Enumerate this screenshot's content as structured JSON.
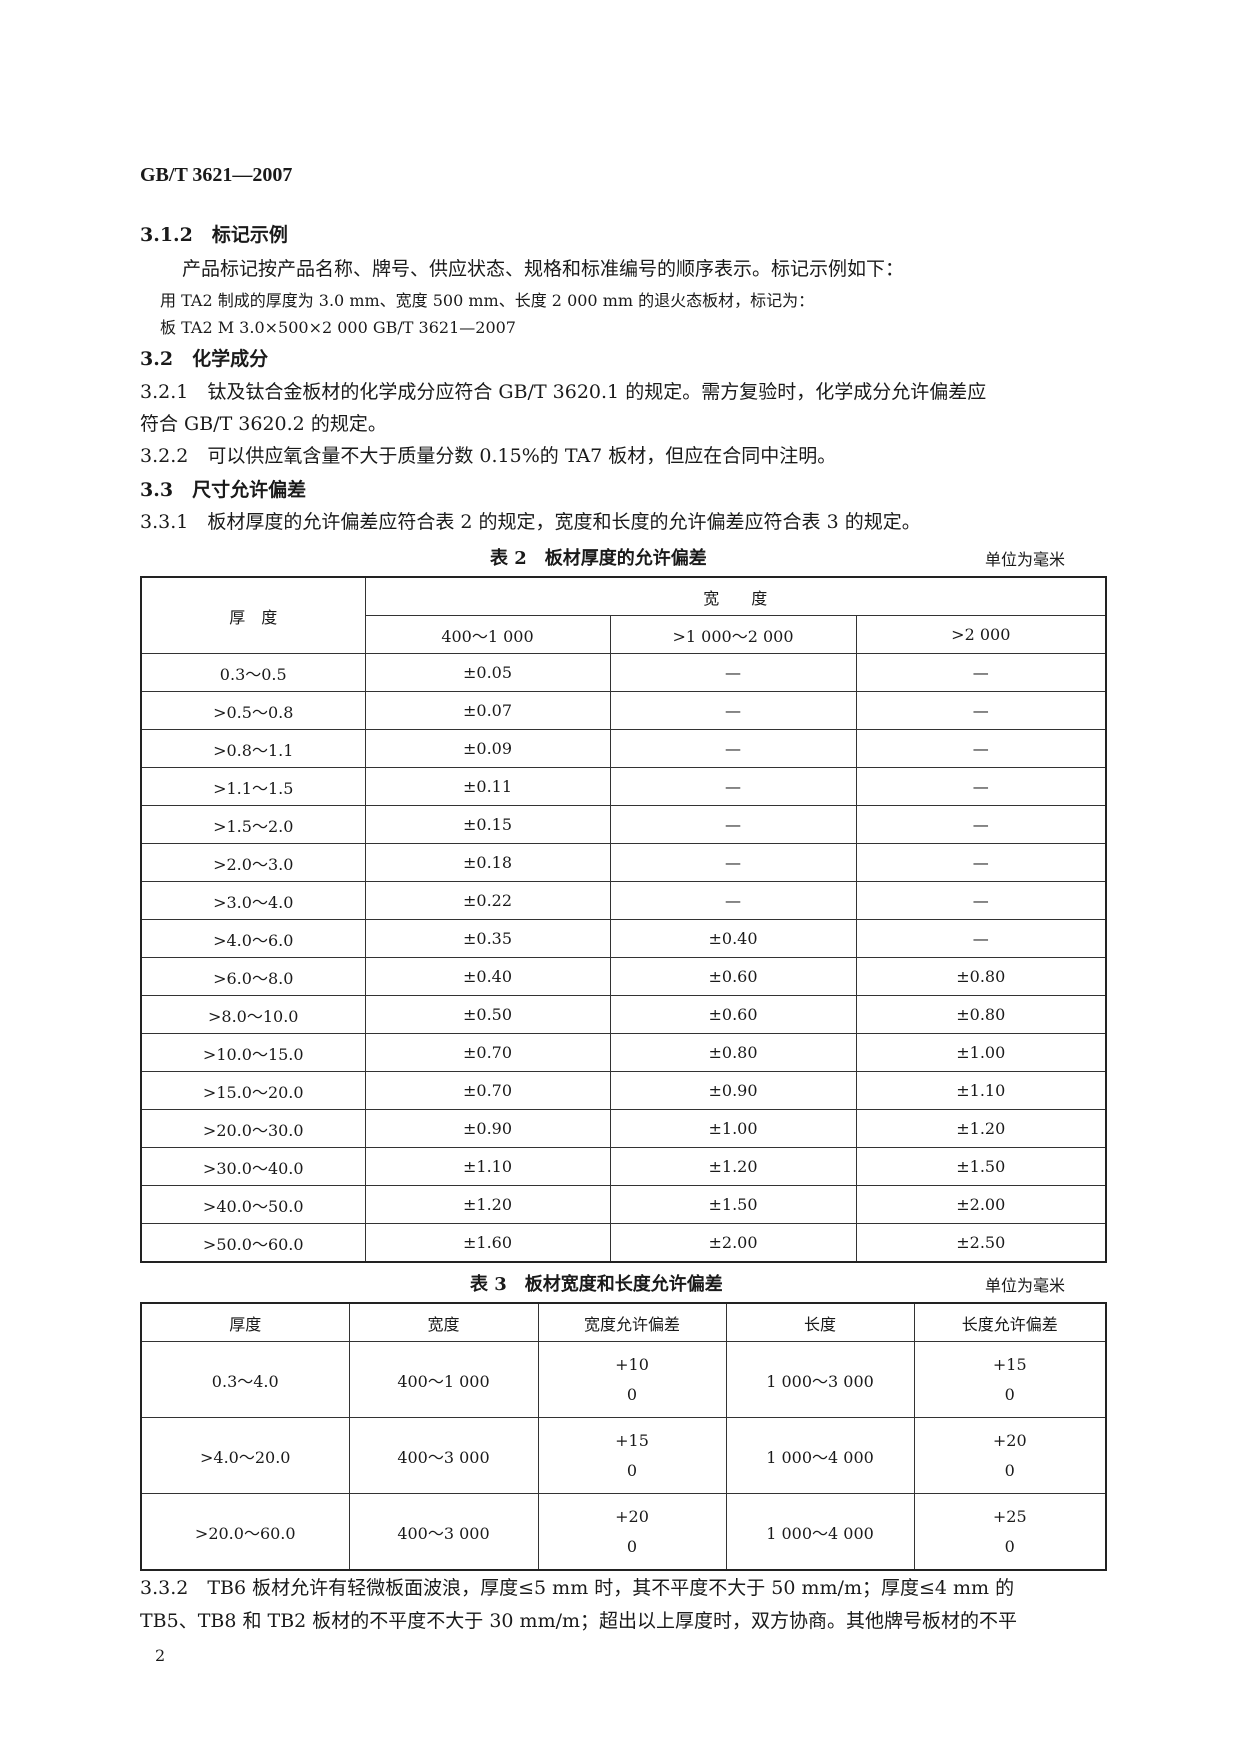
{
  "header": {
    "standard_code": "GB/T 3621—2007"
  },
  "sections": {
    "s312": {
      "num": "3.1.2",
      "title": "标记示例"
    },
    "s312_p1": "产品标记按产品名称、牌号、供应状态、规格和标准编号的顺序表示。标记示例如下：",
    "s312_p2": "用 TA2 制成的厚度为 3.0 mm、宽度 500 mm、长度 2 000 mm 的退火态板材，标记为：",
    "s312_p3": "板 TA2 M 3.0×500×2 000 GB/T 3621—2007",
    "s32": {
      "num": "3.2",
      "title": "化学成分"
    },
    "s321": {
      "num": "3.2.1",
      "text1": "钛及钛合金板材的化学成分应符合 GB/T 3620.1 的规定。需方复验时，化学成分允许偏差应",
      "text2": "符合 GB/T 3620.2 的规定。"
    },
    "s322": {
      "num": "3.2.2",
      "text": "可以供应氧含量不大于质量分数 0.15%的 TA7 板材，但应在合同中注明。"
    },
    "s33": {
      "num": "3.3",
      "title": "尺寸允许偏差"
    },
    "s331": {
      "num": "3.3.1",
      "text": "板材厚度的允许偏差应符合表 2 的规定，宽度和长度的允许偏差应符合表 3 的规定。"
    },
    "s332": {
      "num": "3.3.2",
      "text1": "TB6 板材允许有轻微板面波浪，厚度≤5 mm 时，其不平度不大于 50 mm/m；厚度≤4 mm 的",
      "text2": "TB5、TB8 和 TB2 板材的不平度不大于 30 mm/m；超出以上厚度时，双方协商。其他牌号板材的不平"
    }
  },
  "table2": {
    "caption": "表 2　板材厚度的允许偏差",
    "unit": "单位为毫米",
    "thickness_header": "厚　度",
    "width_header": "宽　　度",
    "width_columns": [
      "400～1 000",
      ">1 000～2 000",
      ">2 000"
    ],
    "rows": [
      [
        "0.3～0.5",
        "±0.05",
        "—",
        "—"
      ],
      [
        ">0.5～0.8",
        "±0.07",
        "—",
        "—"
      ],
      [
        ">0.8～1.1",
        "±0.09",
        "—",
        "—"
      ],
      [
        ">1.1～1.5",
        "±0.11",
        "—",
        "—"
      ],
      [
        ">1.5～2.0",
        "±0.15",
        "—",
        "—"
      ],
      [
        ">2.0～3.0",
        "±0.18",
        "—",
        "—"
      ],
      [
        ">3.0～4.0",
        "±0.22",
        "—",
        "—"
      ],
      [
        ">4.0～6.0",
        "±0.35",
        "±0.40",
        "—"
      ],
      [
        ">6.0～8.0",
        "±0.40",
        "±0.60",
        "±0.80"
      ],
      [
        ">8.0～10.0",
        "±0.50",
        "±0.60",
        "±0.80"
      ],
      [
        ">10.0～15.0",
        "±0.70",
        "±0.80",
        "±1.00"
      ],
      [
        ">15.0～20.0",
        "±0.70",
        "±0.90",
        "±1.10"
      ],
      [
        ">20.0～30.0",
        "±0.90",
        "±1.00",
        "±1.20"
      ],
      [
        ">30.0～40.0",
        "±1.10",
        "±1.20",
        "±1.50"
      ],
      [
        ">40.0～50.0",
        "±1.20",
        "±1.50",
        "±2.00"
      ],
      [
        ">50.0～60.0",
        "±1.60",
        "±2.00",
        "±2.50"
      ]
    ]
  },
  "table3": {
    "caption": "表 3　板材宽度和长度允许偏差",
    "unit": "单位为毫米",
    "headers": [
      "厚度",
      "宽度",
      "宽度允许偏差",
      "长度",
      "长度允许偏差"
    ],
    "rows": [
      {
        "thickness": "0.3～4.0",
        "width": "400～1 000",
        "width_tol_upper": "+10",
        "width_tol_lower": "0",
        "length": "1 000～3 000",
        "length_tol_upper": "+15",
        "length_tol_lower": "0"
      },
      {
        "thickness": ">4.0～20.0",
        "width": "400～3 000",
        "width_tol_upper": "+15",
        "width_tol_lower": "0",
        "length": "1 000～4 000",
        "length_tol_upper": "+20",
        "length_tol_lower": "0"
      },
      {
        "thickness": ">20.0～60.0",
        "width": "400～3 000",
        "width_tol_upper": "+20",
        "width_tol_lower": "0",
        "length": "1 000～4 000",
        "length_tol_upper": "+25",
        "length_tol_lower": "0"
      }
    ]
  },
  "footer": {
    "page_number": "2"
  }
}
